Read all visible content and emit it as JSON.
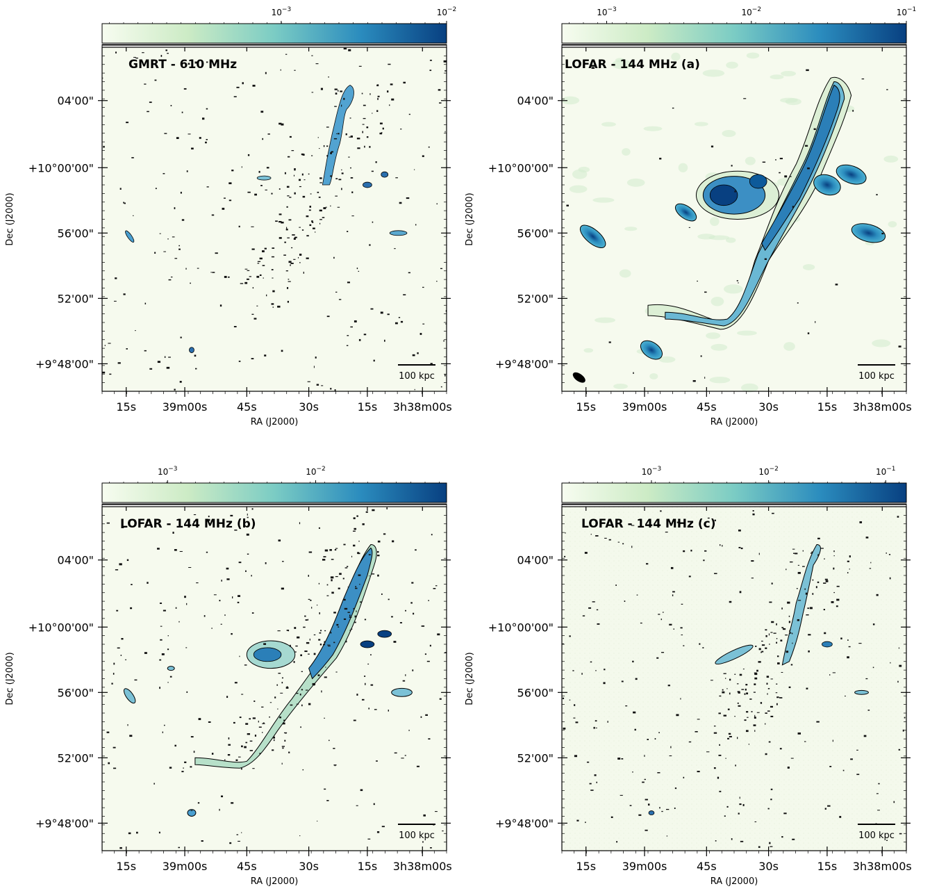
{
  "panels": [
    {
      "id": "gmrt",
      "title": "GMRT - 610 MHz",
      "colorbar_labels": [
        {
          "base": "10",
          "exp": "−3"
        },
        {
          "base": "10",
          "exp": "−2"
        }
      ],
      "dec_ticks": [
        "04'00\"",
        "+10°00'00\"",
        "56'00\"",
        "52'00\"",
        "+9°48'00\""
      ],
      "ra_ticks": [
        "15s",
        "39m00s",
        "45s",
        "30s",
        "15s",
        "3h38m00s"
      ],
      "xlabel": "RA (J2000)",
      "ylabel": "Dec (J2000)",
      "scalebar": "100 kpc"
    },
    {
      "id": "lofar-a",
      "title": "LOFAR - 144 MHz (a)",
      "colorbar_labels": [
        {
          "base": "10",
          "exp": "−3"
        },
        {
          "base": "10",
          "exp": "−2"
        },
        {
          "base": "10",
          "exp": "−1"
        }
      ],
      "dec_ticks": [
        "04'00\"",
        "+10°00'00\"",
        "56'00\"",
        "52'00\"",
        "+9°48'00\""
      ],
      "ra_ticks": [
        "15s",
        "39m00s",
        "45s",
        "30s",
        "15s",
        "3h38m00s"
      ],
      "xlabel": "RA (J2000)",
      "ylabel": "Dec (J2000)",
      "scalebar": "100 kpc"
    },
    {
      "id": "lofar-b",
      "title": "LOFAR - 144 MHz (b)",
      "colorbar_labels": [
        {
          "base": "10",
          "exp": "−3"
        },
        {
          "base": "10",
          "exp": "−2"
        }
      ],
      "dec_ticks": [
        "04'00\"",
        "+10°00'00\"",
        "56'00\"",
        "52'00\"",
        "+9°48'00\""
      ],
      "ra_ticks": [
        "15s",
        "39m00s",
        "45s",
        "30s",
        "15s",
        "3h38m00s"
      ],
      "xlabel": "RA (J2000)",
      "ylabel": "Dec (J2000)",
      "scalebar": "100 kpc"
    },
    {
      "id": "lofar-c",
      "title": "LOFAR - 144 MHz (c)",
      "colorbar_labels": [
        {
          "base": "10",
          "exp": "−3"
        },
        {
          "base": "10",
          "exp": "−2"
        },
        {
          "base": "10",
          "exp": "−1"
        }
      ],
      "dec_ticks": [
        "04'00\"",
        "+10°00'00\"",
        "56'00\"",
        "52'00\"",
        "+9°48'00\""
      ],
      "ra_ticks": [
        "15s",
        "39m00s",
        "45s",
        "30s",
        "15s",
        "3h38m00s"
      ],
      "xlabel": "RA (J2000)",
      "ylabel": "Dec (J2000)",
      "scalebar": "100 kpc"
    }
  ],
  "colors": {
    "background": "#f6faee",
    "colormap_low": "#f7fcf0",
    "colormap_mid1": "#ccebc5",
    "colormap_mid2": "#7bccc4",
    "colormap_mid3": "#2b8cbe",
    "colormap_high": "#084081"
  }
}
